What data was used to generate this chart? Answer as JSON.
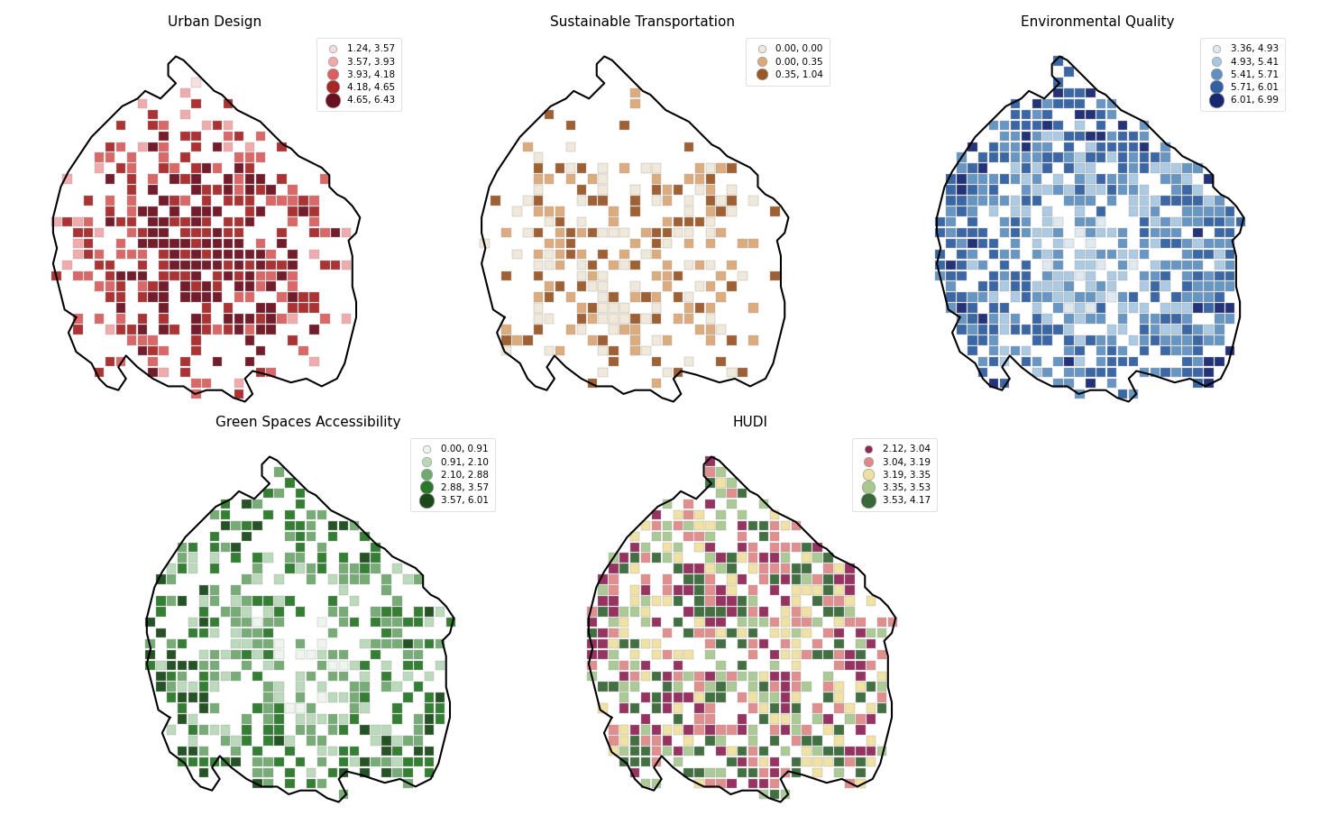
{
  "subplots": [
    {
      "title": "Urban Design",
      "colors": [
        "#f5dede",
        "#f0a8a8",
        "#d96060",
        "#a82828",
        "#6b1020"
      ],
      "bins": [
        "1.24, 3.57",
        "3.57, 3.93",
        "3.93, 4.18",
        "4.18, 4.65",
        "4.65, 6.43"
      ],
      "n_bins": 5
    },
    {
      "title": "Sustainable Transportation",
      "colors": [
        "#f0e8d8",
        "#dba878",
        "#9a5828"
      ],
      "bins": [
        "0.00, 0.00",
        "0.00, 0.35",
        "0.35, 1.04"
      ],
      "n_bins": 3
    },
    {
      "title": "Environmental Quality",
      "colors": [
        "#dde8f0",
        "#a8c8e0",
        "#6090c0",
        "#3060a0",
        "#182870"
      ],
      "bins": [
        "3.36, 4.93",
        "4.93, 5.41",
        "5.41, 5.71",
        "5.71, 6.01",
        "6.01, 6.99"
      ],
      "n_bins": 5
    },
    {
      "title": "Green Spaces Accessibility",
      "colors": [
        "#eef5ee",
        "#b8d8b8",
        "#70a870",
        "#2a782a",
        "#1a4a1a"
      ],
      "bins": [
        "0.00, 0.91",
        "0.91, 2.10",
        "2.10, 2.88",
        "2.88, 3.57",
        "3.57, 6.01"
      ],
      "n_bins": 5
    },
    {
      "title": "HUDI",
      "colors": [
        "#902858",
        "#e08888",
        "#f0e0a0",
        "#a8c890",
        "#386838"
      ],
      "bins": [
        "2.12, 3.04",
        "3.04, 3.19",
        "3.19, 3.35",
        "3.35, 3.53",
        "3.53, 4.17"
      ],
      "n_bins": 5
    }
  ]
}
